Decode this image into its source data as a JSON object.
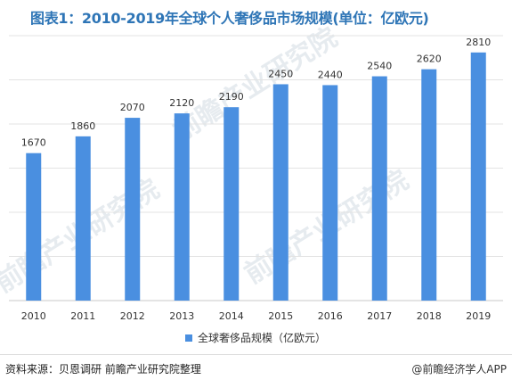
{
  "header": {
    "title": "图表1：2010-2019年全球个人奢侈品市场规模(单位：亿欧元)"
  },
  "footer": {
    "source": "资料来源：贝恩调研 前瞻产业研究院整理",
    "brand": "@前瞻经济学人APP"
  },
  "watermarks": [
    "前瞻产业研究院",
    "前瞻产业研究院",
    "前瞻产业研究院"
  ],
  "chart_data": {
    "type": "bar",
    "title": "图表1：2010-2019年全球个人奢侈品市场规模(单位：亿欧元)",
    "categories": [
      "2010",
      "2011",
      "2012",
      "2013",
      "2014",
      "2015",
      "2016",
      "2017",
      "2018",
      "2019"
    ],
    "series": [
      {
        "name": "全球奢侈品规模（亿欧元）",
        "values": [
          1670,
          1860,
          2070,
          2120,
          2190,
          2450,
          2440,
          2540,
          2620,
          2810
        ],
        "color": "#4a8fe0"
      }
    ],
    "ylim": [
      0,
      3000
    ],
    "grid": true,
    "legend": "bottom",
    "xlabel": "",
    "ylabel": ""
  }
}
